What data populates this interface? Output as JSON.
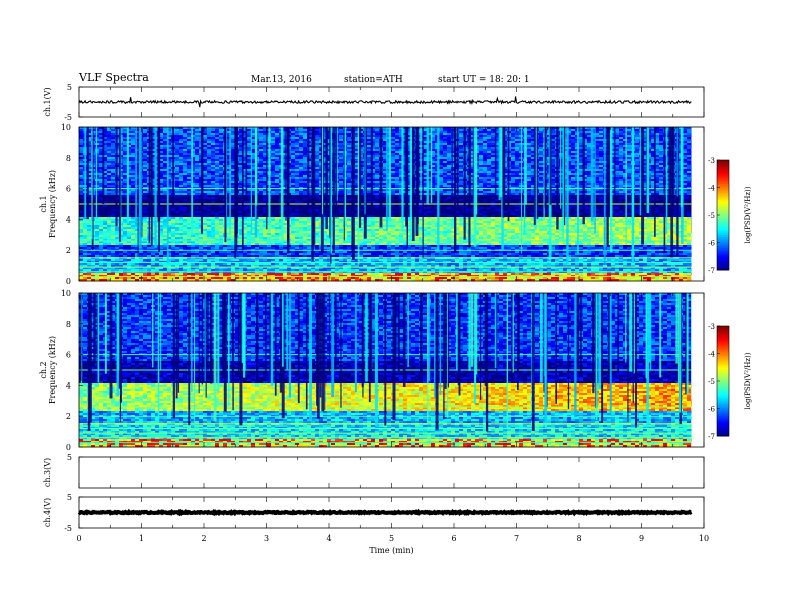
{
  "header": {
    "title": "VLF Spectra",
    "date": "Mar.13, 2016",
    "station": "station=ATH",
    "start": "start  UT =   18: 20: 1"
  },
  "colorbar": {
    "label": "log(PSD(V²/Hz))",
    "ticks": [
      "-3",
      "-4",
      "-5",
      "-6",
      "-7"
    ]
  },
  "chart_data": [
    {
      "type": "line",
      "panel": "ch1-waveform",
      "ylabel": "ch.1(V)",
      "ylim": [
        -5,
        5
      ],
      "yticks": [
        "5",
        "-5"
      ],
      "xlim": [
        0,
        10
      ],
      "series": [
        {
          "baseline": 0,
          "typical_range": [
            -0.6,
            0.6
          ],
          "data_end_min": 9.8
        }
      ]
    },
    {
      "type": "heatmap",
      "panel": "ch1-spectrogram",
      "ylabel": "ch.1\nFrequency  (kHz)",
      "ylim": [
        0,
        10
      ],
      "yticks": [
        "0",
        "2",
        "4",
        "6",
        "8",
        "10"
      ],
      "xlim": [
        0,
        10
      ],
      "data_end_min": 9.8,
      "colorscale": {
        "min": -7,
        "max": -3,
        "unit": "log(PSD(V²/Hz))"
      },
      "bands_khz": [
        {
          "range": [
            0,
            0.5
          ],
          "level": -4.5
        },
        {
          "range": [
            0.5,
            1.5
          ],
          "level": -5.8
        },
        {
          "range": [
            1.5,
            2.4
          ],
          "level": -6.3
        },
        {
          "range": [
            2.4,
            4.2
          ],
          "level": -5.4
        },
        {
          "range": [
            4.2,
            5.6
          ],
          "level": -7.0
        },
        {
          "range": [
            5.6,
            10
          ],
          "level": -6.2
        }
      ]
    },
    {
      "type": "heatmap",
      "panel": "ch2-spectrogram",
      "ylabel": "ch.2\nFrequency  (kHz)",
      "ylim": [
        0,
        10
      ],
      "yticks": [
        "0",
        "2",
        "4",
        "6",
        "8",
        "10"
      ],
      "xlim": [
        0,
        10
      ],
      "data_end_min": 9.8,
      "colorscale": {
        "min": -7,
        "max": -3,
        "unit": "log(PSD(V²/Hz))"
      },
      "bands_khz": [
        {
          "range": [
            0,
            0.5
          ],
          "level": -4.8
        },
        {
          "range": [
            0.5,
            1.5
          ],
          "level": -5.6
        },
        {
          "range": [
            1.5,
            2.4
          ],
          "level": -5.8
        },
        {
          "range": [
            2.4,
            4.2
          ],
          "level": -5.0
        },
        {
          "range": [
            4.2,
            5.6
          ],
          "level": -6.8
        },
        {
          "range": [
            5.6,
            10
          ],
          "level": -6.3
        }
      ]
    },
    {
      "type": "line",
      "panel": "ch3-waveform",
      "ylabel": "ch.3(V)",
      "ylim": [
        -5,
        5
      ],
      "yticks": [
        "5"
      ],
      "xlim": [
        0,
        10
      ],
      "series": []
    },
    {
      "type": "line",
      "panel": "ch4-waveform",
      "ylabel": "ch.4(V)",
      "ylim": [
        -5,
        5
      ],
      "yticks": [
        "5",
        "-5"
      ],
      "xlim": [
        0,
        10
      ],
      "series": [
        {
          "baseline": 0,
          "typical_range": [
            -0.3,
            0.3
          ],
          "data_end_min": 9.8
        }
      ]
    }
  ],
  "xaxis": {
    "label": "Time  (min)",
    "ticks": [
      "0",
      "1",
      "2",
      "3",
      "4",
      "5",
      "6",
      "7",
      "8",
      "9",
      "10"
    ]
  }
}
